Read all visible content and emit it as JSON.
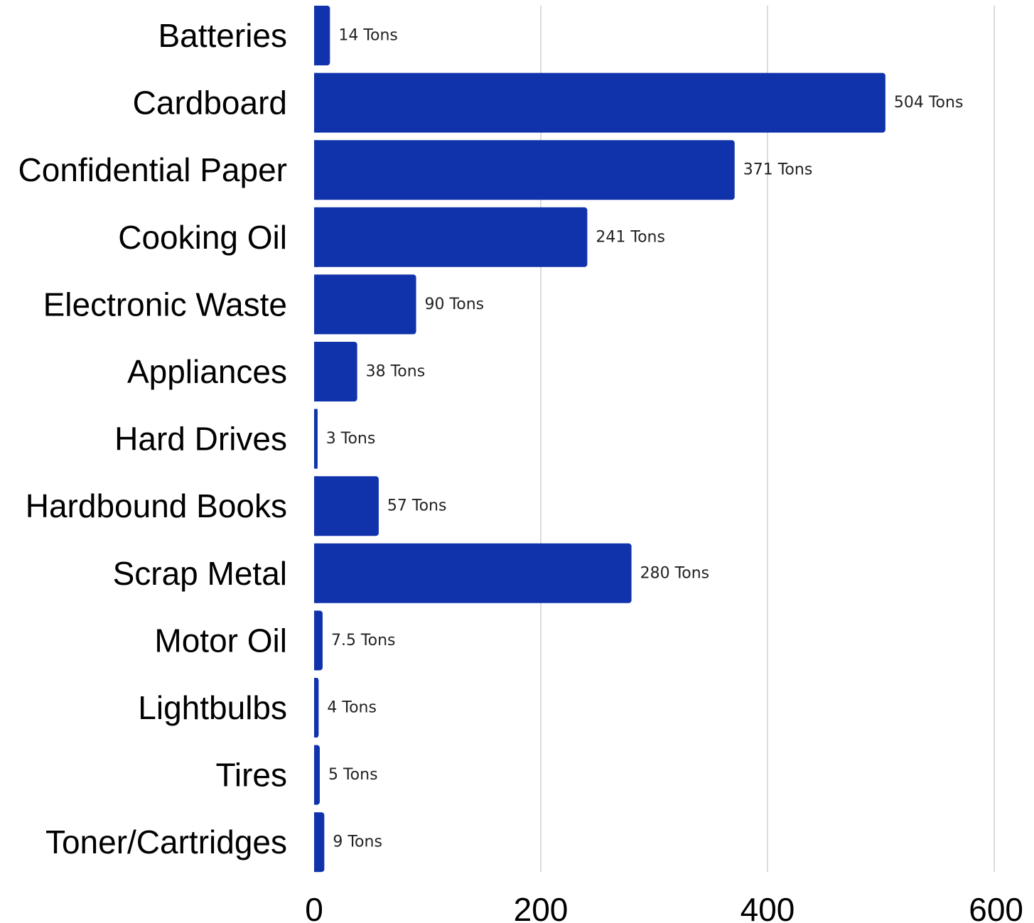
{
  "chart_data": {
    "type": "bar",
    "orientation": "horizontal",
    "title": "",
    "xlabel": "",
    "ylabel": "",
    "categories": [
      "Batteries",
      "Cardboard",
      "Confidential Paper",
      "Cooking Oil",
      "Electronic Waste",
      "Appliances",
      "Hard Drives",
      "Hardbound Books",
      "Scrap Metal",
      "Motor Oil",
      "Lightbulbs",
      "Tires",
      "Toner/Cartridges"
    ],
    "values": [
      14,
      504,
      371,
      241,
      90,
      38,
      3,
      57,
      280,
      7.5,
      4,
      5,
      9
    ],
    "data_labels": [
      "14 Tons",
      "504 Tons",
      "371 Tons",
      "241 Tons",
      "90 Tons",
      "38 Tons",
      "3 Tons",
      "57 Tons",
      "280 Tons",
      "7.5 Tons",
      "4 Tons",
      "5 Tons",
      "9 Tons"
    ],
    "xlim": [
      0,
      600
    ],
    "x_ticks": [
      0,
      200,
      400,
      600
    ],
    "x_tick_labels": [
      "0",
      "200",
      "400",
      "600"
    ],
    "grid": "vertical",
    "legend": "none",
    "bar_color": "#1033ab",
    "grid_color": "#cfcfcf"
  }
}
